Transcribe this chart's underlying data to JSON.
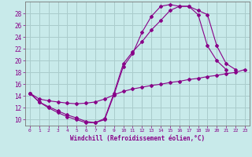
{
  "xlabel": "Windchill (Refroidissement éolien,°C)",
  "bg_color": "#c8eaea",
  "line_color": "#880088",
  "grid_color": "#aacccc",
  "xlim": [
    -0.5,
    23.5
  ],
  "ylim": [
    9.0,
    30.0
  ],
  "xticks": [
    0,
    1,
    2,
    3,
    4,
    5,
    6,
    7,
    8,
    9,
    10,
    11,
    12,
    13,
    14,
    15,
    16,
    17,
    18,
    19,
    20,
    21,
    22,
    23
  ],
  "yticks": [
    10,
    12,
    14,
    16,
    18,
    20,
    22,
    24,
    26,
    28
  ],
  "s0x": [
    0,
    1,
    2,
    3,
    4,
    5,
    6,
    7,
    8,
    9,
    10,
    11,
    12,
    13,
    14,
    15,
    16,
    17,
    18,
    19,
    20,
    21
  ],
  "s0y": [
    14.5,
    13.0,
    12.2,
    11.5,
    10.8,
    10.3,
    9.7,
    9.5,
    10.0,
    14.2,
    19.0,
    21.2,
    24.8,
    27.5,
    29.2,
    29.5,
    29.2,
    29.2,
    27.8,
    22.5,
    20.0,
    18.5
  ],
  "s1x": [
    0,
    1,
    2,
    3,
    4,
    5,
    6,
    7,
    8,
    9,
    10,
    11,
    12,
    13,
    14,
    15,
    16,
    17,
    18,
    19,
    20,
    21,
    22
  ],
  "s1y": [
    14.5,
    13.0,
    12.0,
    11.2,
    10.5,
    10.0,
    9.5,
    9.5,
    10.2,
    14.5,
    19.5,
    21.5,
    23.2,
    25.2,
    26.8,
    28.5,
    29.2,
    29.2,
    28.5,
    27.8,
    22.5,
    19.5,
    18.5
  ],
  "s2x": [
    0,
    1,
    2,
    3,
    4,
    5,
    6,
    7,
    8,
    9,
    10,
    11,
    12,
    13,
    14,
    15,
    16,
    17,
    18,
    19,
    20,
    21,
    22,
    23
  ],
  "s2y": [
    14.5,
    13.5,
    13.2,
    13.0,
    12.8,
    12.7,
    12.8,
    13.0,
    13.5,
    14.2,
    14.8,
    15.2,
    15.5,
    15.8,
    16.0,
    16.3,
    16.5,
    16.8,
    17.0,
    17.3,
    17.5,
    17.8,
    18.0,
    18.5
  ]
}
